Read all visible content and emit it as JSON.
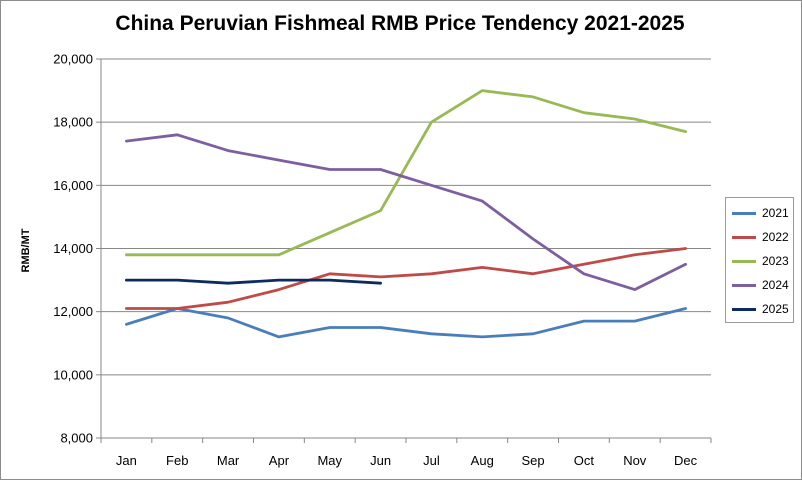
{
  "chart_data": {
    "type": "line",
    "title": "China Peruvian Fishmeal RMB Price Tendency 2021-2025",
    "xlabel": "",
    "ylabel": "RMB/MT",
    "categories": [
      "Jan",
      "Feb",
      "Mar",
      "Apr",
      "May",
      "Jun",
      "Jul",
      "Aug",
      "Sep",
      "Oct",
      "Nov",
      "Dec"
    ],
    "ylim": [
      8000,
      20000
    ],
    "yticks": [
      {
        "value": 8000,
        "label": "8,000"
      },
      {
        "value": 10000,
        "label": "10,000"
      },
      {
        "value": 12000,
        "label": "12,000"
      },
      {
        "value": 14000,
        "label": "14,000"
      },
      {
        "value": 16000,
        "label": "16,000"
      },
      {
        "value": 18000,
        "label": "18,000"
      },
      {
        "value": 20000,
        "label": "20,000"
      }
    ],
    "grid": "horizontal",
    "legend_position": "right",
    "series": [
      {
        "name": "2021",
        "color": "#4a7ebb",
        "values": [
          11600,
          12100,
          11800,
          11200,
          11500,
          11500,
          11300,
          11200,
          11300,
          11700,
          11700,
          12100
        ]
      },
      {
        "name": "2022",
        "color": "#be4b48",
        "values": [
          12100,
          12100,
          12300,
          12700,
          13200,
          13100,
          13200,
          13400,
          13200,
          13500,
          13800,
          14000
        ]
      },
      {
        "name": "2023",
        "color": "#98b954",
        "values": [
          13800,
          13800,
          13800,
          13800,
          14500,
          15200,
          18000,
          19000,
          18800,
          18300,
          18100,
          17700
        ]
      },
      {
        "name": "2024",
        "color": "#7d5fa0",
        "values": [
          17400,
          17600,
          17100,
          16800,
          16500,
          16500,
          16000,
          15500,
          14300,
          13200,
          12700,
          13500
        ]
      },
      {
        "name": "2025",
        "color": "#0f2a5e",
        "values": [
          13000,
          13000,
          12900,
          13000,
          13000,
          12900,
          null,
          null,
          null,
          null,
          null,
          null
        ]
      }
    ]
  }
}
